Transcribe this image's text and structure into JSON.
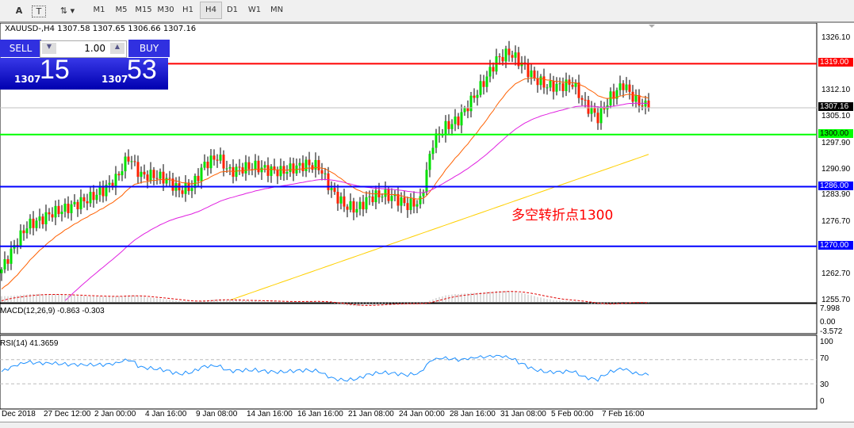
{
  "toolbar": {
    "tools": [
      "A",
      "T",
      "⇅ ▾"
    ],
    "timeframes": [
      "M1",
      "M5",
      "M15",
      "M30",
      "H1",
      "H4",
      "D1",
      "W1",
      "MN"
    ],
    "selected": "H4"
  },
  "symbol_info": "XAUUSD-,H4  1307.58 1307.65 1306.66 1307.16",
  "trade_panel": {
    "sell_label": "SELL",
    "buy_label": "BUY",
    "lot": "1.00",
    "sell_big": "15",
    "sell_small": "1307",
    "buy_big": "53",
    "buy_small": "1307"
  },
  "annotation": "多空转折点1300",
  "colors": {
    "bull": "#00e000",
    "bear": "#ff2000",
    "ma_fast": "#ff6000",
    "ma_mid": "#e020e0",
    "ma_slow": "#ffd000",
    "rsi": "#1e90ff"
  },
  "chart_data": {
    "type": "candlestick",
    "symbol": "XAUUSD-",
    "timeframe": "H4",
    "ylim": [
      1255.7,
      1326.1
    ],
    "price_ticks": [
      "1326.10",
      "1312.10",
      "1305.10",
      "1297.90",
      "1290.90",
      "1283.90",
      "1276.70",
      "1262.70",
      "1255.70"
    ],
    "closes_every_4_bars": [
      1263.8,
      1270,
      1275.5,
      1277,
      1279,
      1280,
      1281.5,
      1283,
      1285,
      1288,
      1294,
      1289,
      1289,
      1288,
      1285,
      1286,
      1292,
      1294,
      1290,
      1291,
      1291.4,
      1290.5,
      1290,
      1291,
      1292,
      1291.4,
      1285,
      1281,
      1280,
      1283,
      1284,
      1283,
      1281,
      1282,
      1298,
      1302,
      1304,
      1309,
      1314,
      1320,
      1322,
      1319,
      1315,
      1313,
      1313,
      1313.8,
      1308,
      1304.5,
      1310,
      1313.5,
      1309,
      1307.16
    ],
    "current_price": {
      "label": "1307.16",
      "value": 1307.16
    },
    "levels": [
      {
        "label": "1319.00",
        "value": 1319,
        "color": "#ff0000"
      },
      {
        "label": "1300.00",
        "value": 1300,
        "color": "#00ff00"
      },
      {
        "label": "1286.00",
        "value": 1286,
        "color": "#0000ff"
      },
      {
        "label": "1270.00",
        "value": 1270,
        "color": "#0000ff"
      }
    ],
    "x_labels": [
      "Dec 2018",
      "27 Dec 12:00",
      "2 Jan 00:00",
      "4 Jan 16:00",
      "9 Jan 08:00",
      "14 Jan 16:00",
      "16 Jan 16:00",
      "21 Jan 08:00",
      "24 Jan 00:00",
      "28 Jan 16:00",
      "31 Jan 08:00",
      "5 Feb 00:00",
      "7 Feb 16:00"
    ],
    "macd": {
      "label": "MACD(12,26,9) -0.863 -0.303",
      "ticks": [
        "7.998",
        "0.00",
        "-3.572"
      ]
    },
    "rsi": {
      "label": "RSI(14) 41.3659",
      "ticks": [
        "100",
        "70",
        "30",
        "0"
      ],
      "levels": [
        70,
        30
      ]
    }
  }
}
